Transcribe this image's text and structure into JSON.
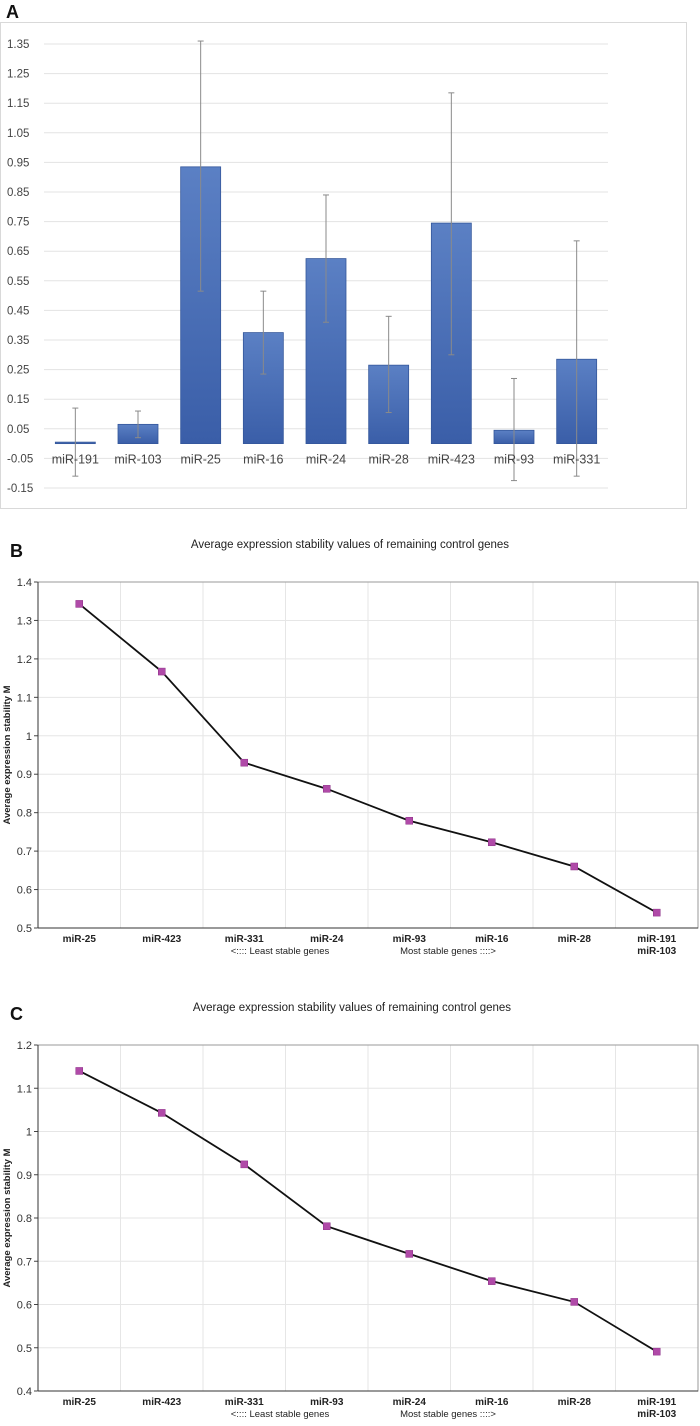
{
  "chart_data": [
    {
      "panel": "A",
      "type": "bar",
      "title": "",
      "xlabel": "",
      "ylabel": "",
      "ylim": [
        -0.15,
        1.35
      ],
      "yticks": [
        "1.35",
        "1.25",
        "1.15",
        "1.05",
        "0.95",
        "0.85",
        "0.75",
        "0.65",
        "0.55",
        "0.45",
        "0.35",
        "0.25",
        "0.15",
        "0.05",
        "-0.05",
        "-0.15"
      ],
      "categories": [
        "miR-191",
        "miR-103",
        "miR-25",
        "miR-16",
        "miR-24",
        "miR-28",
        "miR-423",
        "miR-93",
        "miR-331"
      ],
      "values": [
        0.005,
        0.065,
        0.935,
        0.375,
        0.625,
        0.265,
        0.745,
        0.045,
        0.285
      ],
      "error_low": [
        -0.11,
        0.02,
        0.515,
        0.235,
        0.41,
        0.105,
        0.3,
        -0.125,
        -0.11
      ],
      "error_high": [
        0.12,
        0.11,
        1.36,
        0.515,
        0.84,
        0.43,
        1.185,
        0.22,
        0.685
      ],
      "bar_color": "#4a6fb5"
    },
    {
      "panel": "B",
      "type": "line",
      "title": "Average expression stability values of remaining control genes",
      "xlabel_left": "<::::  Least stable genes",
      "xlabel_right": "Most stable genes ::::>",
      "ylabel": "Average expression stability M",
      "ylim": [
        0.5,
        1.4
      ],
      "yticks": [
        "1.4",
        "1.3",
        "1.2",
        "1.1",
        "1",
        "0.9",
        "0.8",
        "0.7",
        "0.6",
        "0.5"
      ],
      "categories": [
        "miR-25",
        "miR-423",
        "miR-331",
        "miR-24",
        "miR-93",
        "miR-16",
        "miR-28",
        "miR-191"
      ],
      "category_extra": "miR-103",
      "values": [
        1.343,
        1.167,
        0.93,
        0.862,
        0.779,
        0.723,
        0.66,
        0.54
      ],
      "marker_color": "#b04aa8"
    },
    {
      "panel": "C",
      "type": "line",
      "title": "Average expression stability values of remaining control genes",
      "xlabel_left": "<::::  Least stable genes",
      "xlabel_right": "Most stable genes ::::>",
      "ylabel": "Average expression stability M",
      "ylim": [
        0.4,
        1.2
      ],
      "yticks": [
        "1.2",
        "1.1",
        "1",
        "0.9",
        "0.8",
        "0.7",
        "0.6",
        "0.5",
        "0.4"
      ],
      "categories": [
        "miR-25",
        "miR-423",
        "miR-331",
        "miR-93",
        "miR-24",
        "miR-16",
        "miR-28",
        "miR-191"
      ],
      "category_extra": "miR-103",
      "values": [
        1.14,
        1.043,
        0.924,
        0.781,
        0.717,
        0.654,
        0.606,
        0.491
      ],
      "marker_color": "#b04aa8"
    }
  ]
}
